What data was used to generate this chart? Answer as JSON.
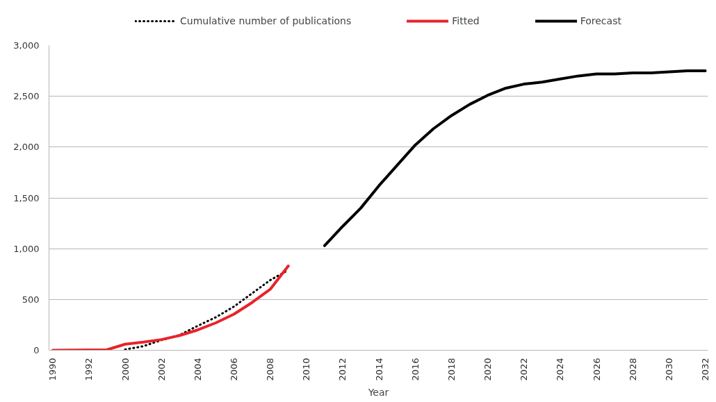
{
  "chart_data": {
    "type": "line",
    "xlabel": "Year",
    "categories": [
      "1990",
      null,
      "1992",
      null,
      "2000",
      null,
      "2002",
      null,
      "2004",
      null,
      "2006",
      null,
      "2008",
      null,
      "2010",
      null,
      "2012",
      null,
      "2014",
      null,
      "2016",
      null,
      "2018",
      null,
      "2020",
      null,
      "2022",
      null,
      "2024",
      null,
      "2026",
      null,
      "2028",
      null,
      "2030",
      null,
      "2032"
    ],
    "series": [
      {
        "name": "Cumulative number of publications",
        "color": "#000000",
        "line_style": "dotted",
        "values": [
          null,
          null,
          null,
          null,
          8,
          40,
          100,
          150,
          240,
          325,
          430,
          560,
          690,
          790,
          null,
          null,
          null,
          null,
          null,
          null,
          null,
          null,
          null,
          null,
          null,
          null,
          null,
          null,
          null,
          null,
          null,
          null,
          null,
          null,
          null,
          null,
          null
        ]
      },
      {
        "name": "Fitted",
        "color": "#e8232b",
        "line_style": "solid",
        "values": [
          0,
          2,
          3,
          5,
          60,
          80,
          105,
          145,
          200,
          270,
          355,
          470,
          600,
          830,
          null,
          null,
          null,
          null,
          null,
          null,
          null,
          null,
          null,
          null,
          null,
          null,
          null,
          null,
          null,
          null,
          null,
          null,
          null,
          null,
          null,
          null,
          null
        ]
      },
      {
        "name": "Forecast",
        "color": "#000000",
        "line_style": "solid",
        "values": [
          null,
          null,
          null,
          null,
          null,
          null,
          null,
          null,
          null,
          null,
          null,
          null,
          null,
          null,
          null,
          1030,
          1220,
          1400,
          1620,
          1820,
          2020,
          2180,
          2310,
          2420,
          2510,
          2580,
          2620,
          2640,
          2670,
          2700,
          2720,
          2720,
          2730,
          2730,
          2740,
          2750,
          2750
        ]
      }
    ],
    "ylim": [
      0,
      3000
    ],
    "yticks": [
      0,
      500,
      {
        "value": 1000,
        "label": "1,000"
      },
      {
        "value": 1500,
        "label": "1,500"
      },
      {
        "value": 2000,
        "label": "2,000"
      },
      {
        "value": 2500,
        "label": "2,500"
      },
      {
        "value": 3000,
        "label": "3,000"
      }
    ],
    "grid": "y",
    "legend": "top"
  }
}
